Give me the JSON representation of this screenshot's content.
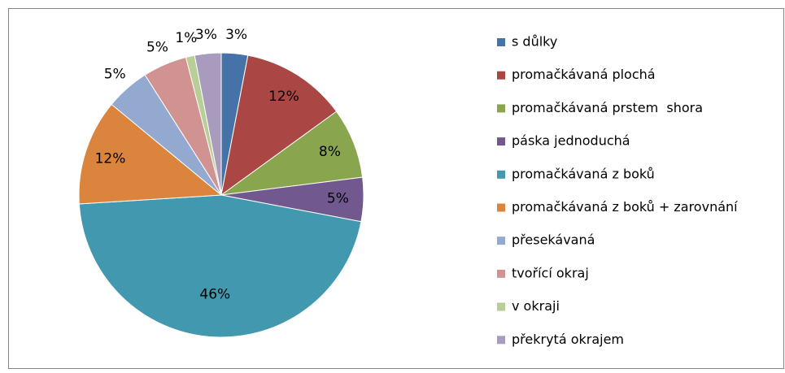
{
  "chart_data": {
    "type": "pie",
    "categories": [
      "s důlky",
      "promačkávaná plochá",
      "promačkávaná prstem  shora",
      "páska jednoduchá",
      "promačkávaná z boků",
      "promačkávaná z boků + zarovnání",
      "přesekávaná",
      "tvořící okraj",
      "v okraji",
      "překrytá okrajem"
    ],
    "values": [
      3,
      12,
      8,
      5,
      46,
      12,
      5,
      5,
      1,
      3
    ],
    "value_labels": [
      "3%",
      "12%",
      "8%",
      "5%",
      "46%",
      "12%",
      "5%",
      "5%",
      "1%",
      "3%"
    ],
    "colors": [
      "#4572A7",
      "#AA4643",
      "#89A54E",
      "#71588F",
      "#4198AF",
      "#DB843D",
      "#93A9CF",
      "#D19392",
      "#B9CD96",
      "#A99BBD"
    ],
    "legend": "right"
  }
}
